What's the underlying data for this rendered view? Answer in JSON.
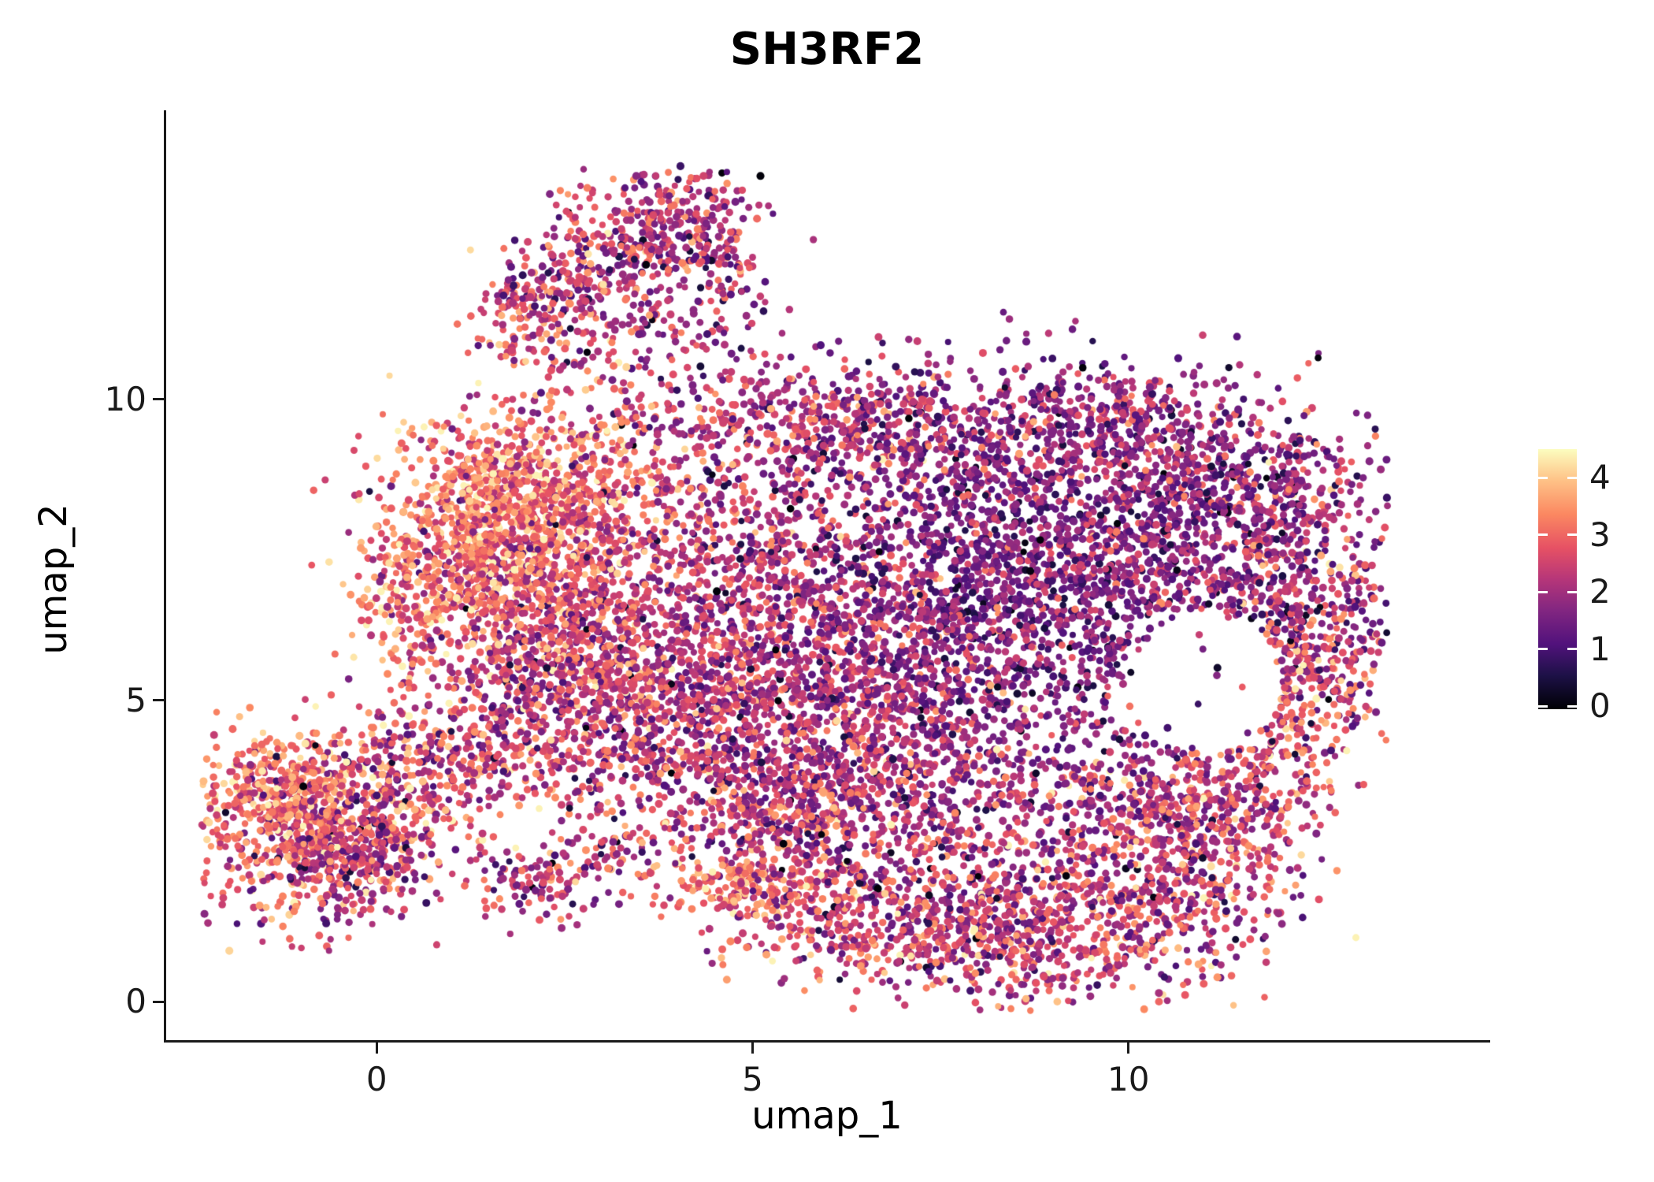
{
  "figure": {
    "background": "#ffffff"
  },
  "chart_data": {
    "type": "scatter",
    "title": "SH3RF2",
    "xlabel": "umap_1",
    "ylabel": "umap_2",
    "xlim": [
      -2.81,
      14.79
    ],
    "ylim": [
      -0.64,
      14.8
    ],
    "x_ticks": [
      0,
      5,
      10
    ],
    "y_ticks": [
      0,
      5,
      10
    ],
    "grid": false,
    "note": "UMAP feature plot; ~14000 cells colored by SH3RF2 expression (0-4, magma colormap). Point cloud encoded as Gaussian cluster summaries: x,y = center; sx,sy = spread; n = cells; v = mean expression; vs = expression spread.",
    "legend": {
      "type": "colorbar",
      "position": "right",
      "ticks": [
        0,
        1,
        2,
        3,
        4
      ],
      "range": [
        -0.05,
        4.5
      ],
      "colormap": "magma",
      "stops": [
        [
          0.0,
          "#000004"
        ],
        [
          0.13,
          "#1d1147"
        ],
        [
          0.25,
          "#51127c"
        ],
        [
          0.38,
          "#822681"
        ],
        [
          0.5,
          "#b63679"
        ],
        [
          0.62,
          "#e65164"
        ],
        [
          0.75,
          "#fb8861"
        ],
        [
          0.88,
          "#fec287"
        ],
        [
          1.0,
          "#fcfdbf"
        ]
      ]
    },
    "point_radius_px": 4.5,
    "seed": 20240607,
    "clusters": [
      {
        "x": 1.95,
        "y": 11.35,
        "sx": 0.38,
        "sy": 0.55,
        "n": 130,
        "v": 2.5,
        "vs": 0.8
      },
      {
        "x": 2.75,
        "y": 11.95,
        "sx": 0.45,
        "sy": 0.6,
        "n": 160,
        "v": 2.3,
        "vs": 0.8
      },
      {
        "x": 3.6,
        "y": 12.75,
        "sx": 0.6,
        "sy": 0.55,
        "n": 260,
        "v": 2.2,
        "vs": 0.8
      },
      {
        "x": 4.35,
        "y": 12.9,
        "sx": 0.35,
        "sy": 0.5,
        "n": 110,
        "v": 2.1,
        "vs": 0.7
      },
      {
        "x": 3.4,
        "y": 10.9,
        "sx": 0.7,
        "sy": 0.6,
        "n": 90,
        "v": 2.3,
        "vs": 0.9
      },
      {
        "x": 4.6,
        "y": 11.6,
        "sx": 0.45,
        "sy": 0.75,
        "n": 70,
        "v": 2.1,
        "vs": 0.9
      },
      {
        "x": 5.6,
        "y": 9.6,
        "sx": 1.3,
        "sy": 0.5,
        "n": 420,
        "v": 2.2,
        "vs": 0.85
      },
      {
        "x": 8.6,
        "y": 9.4,
        "sx": 1.7,
        "sy": 0.6,
        "n": 520,
        "v": 1.8,
        "vs": 0.7
      },
      {
        "x": 9.9,
        "y": 9.9,
        "sx": 0.6,
        "sy": 0.35,
        "n": 90,
        "v": 1.9,
        "vs": 0.7
      },
      {
        "x": 2.1,
        "y": 8.6,
        "sx": 0.9,
        "sy": 0.7,
        "n": 650,
        "v": 3.1,
        "vs": 0.75
      },
      {
        "x": 1.3,
        "y": 7.4,
        "sx": 0.75,
        "sy": 0.9,
        "n": 600,
        "v": 3.3,
        "vs": 0.7
      },
      {
        "x": 0.5,
        "y": 6.6,
        "sx": 0.4,
        "sy": 0.6,
        "n": 120,
        "v": 3.2,
        "vs": 0.7
      },
      {
        "x": 2.6,
        "y": 6.7,
        "sx": 0.9,
        "sy": 1.0,
        "n": 600,
        "v": 2.6,
        "vs": 0.8
      },
      {
        "x": 2.3,
        "y": 5.2,
        "sx": 0.9,
        "sy": 0.9,
        "n": 500,
        "v": 2.2,
        "vs": 0.8
      },
      {
        "x": 5.0,
        "y": 6.6,
        "sx": 1.4,
        "sy": 1.5,
        "n": 1100,
        "v": 2.2,
        "vs": 0.75
      },
      {
        "x": 6.6,
        "y": 5.4,
        "sx": 1.4,
        "sy": 1.3,
        "n": 900,
        "v": 2.0,
        "vs": 0.7
      },
      {
        "x": 8.7,
        "y": 6.9,
        "sx": 1.5,
        "sy": 1.5,
        "n": 1500,
        "v": 1.5,
        "vs": 0.6
      },
      {
        "x": 10.6,
        "y": 7.9,
        "sx": 1.1,
        "sy": 1.0,
        "n": 700,
        "v": 1.8,
        "vs": 0.7
      },
      {
        "x": 11.9,
        "y": 8.6,
        "sx": 0.7,
        "sy": 0.6,
        "n": 160,
        "v": 1.9,
        "vs": 0.8
      },
      {
        "x": 12.1,
        "y": 6.6,
        "sx": 0.65,
        "sy": 1.2,
        "n": 380,
        "v": 2.1,
        "vs": 0.9
      },
      {
        "x": 13.0,
        "y": 6.3,
        "sx": 0.3,
        "sy": 0.8,
        "n": 90,
        "v": 2.3,
        "vs": 0.9
      },
      {
        "x": 12.2,
        "y": 4.9,
        "sx": 0.5,
        "sy": 0.8,
        "n": 220,
        "v": 2.7,
        "vs": 0.8
      },
      {
        "x": 10.4,
        "y": 3.5,
        "sx": 1.1,
        "sy": 0.6,
        "n": 320,
        "v": 2.1,
        "vs": 0.8
      },
      {
        "x": 6.3,
        "y": 3.9,
        "sx": 1.3,
        "sy": 0.8,
        "n": 500,
        "v": 2.2,
        "vs": 0.8
      },
      {
        "x": 3.9,
        "y": 4.4,
        "sx": 0.8,
        "sy": 0.8,
        "n": 350,
        "v": 2.3,
        "vs": 0.8
      },
      {
        "x": 5.4,
        "y": 2.9,
        "sx": 0.9,
        "sy": 0.6,
        "n": 260,
        "v": 2.4,
        "vs": 0.9
      },
      {
        "x": 6.0,
        "y": 1.6,
        "sx": 0.8,
        "sy": 0.5,
        "n": 240,
        "v": 2.6,
        "vs": 0.9
      },
      {
        "x": 7.4,
        "y": 1.1,
        "sx": 1.0,
        "sy": 0.5,
        "n": 300,
        "v": 2.4,
        "vs": 0.85
      },
      {
        "x": 9.0,
        "y": 1.1,
        "sx": 1.1,
        "sy": 0.6,
        "n": 420,
        "v": 2.4,
        "vs": 0.85
      },
      {
        "x": 10.4,
        "y": 1.9,
        "sx": 0.8,
        "sy": 0.8,
        "n": 330,
        "v": 2.3,
        "vs": 0.85
      },
      {
        "x": 11.3,
        "y": 3.0,
        "sx": 0.7,
        "sy": 0.8,
        "n": 260,
        "v": 2.4,
        "vs": 0.9
      },
      {
        "x": 8.1,
        "y": 2.4,
        "sx": 1.3,
        "sy": 0.7,
        "n": 260,
        "v": 2.0,
        "vs": 0.8
      },
      {
        "x": 2.15,
        "y": 1.95,
        "sx": 0.45,
        "sy": 0.35,
        "n": 110,
        "v": 2.1,
        "vs": 0.8
      },
      {
        "x": 3.1,
        "y": 2.5,
        "sx": 0.4,
        "sy": 0.35,
        "n": 60,
        "v": 2.4,
        "vs": 0.9
      },
      {
        "x": 4.7,
        "y": 1.95,
        "sx": 0.45,
        "sy": 0.3,
        "n": 110,
        "v": 3.2,
        "vs": 0.6
      },
      {
        "x": 1.5,
        "y": 4.0,
        "sx": 0.5,
        "sy": 0.5,
        "n": 90,
        "v": 2.5,
        "vs": 0.9
      },
      {
        "x": -0.9,
        "y": 2.8,
        "sx": 0.8,
        "sy": 0.75,
        "n": 650,
        "v": 2.8,
        "vs": 0.9
      },
      {
        "x": -1.2,
        "y": 3.6,
        "sx": 0.55,
        "sy": 0.4,
        "n": 220,
        "v": 3.3,
        "vs": 0.6
      },
      {
        "x": -0.3,
        "y": 2.4,
        "sx": 0.45,
        "sy": 0.45,
        "n": 200,
        "v": 2.0,
        "vs": 0.7
      },
      {
        "x": 0.5,
        "y": 3.4,
        "sx": 0.45,
        "sy": 0.5,
        "n": 150,
        "v": 2.7,
        "vs": 0.9
      },
      {
        "x": 0.2,
        "y": 4.3,
        "sx": 0.4,
        "sy": 0.4,
        "n": 70,
        "v": 2.5,
        "vs": 0.9
      }
    ],
    "holes": [
      {
        "x": 11.05,
        "y": 5.3,
        "rx": 1.0,
        "ry": 1.2,
        "keep": 0.1
      }
    ]
  }
}
